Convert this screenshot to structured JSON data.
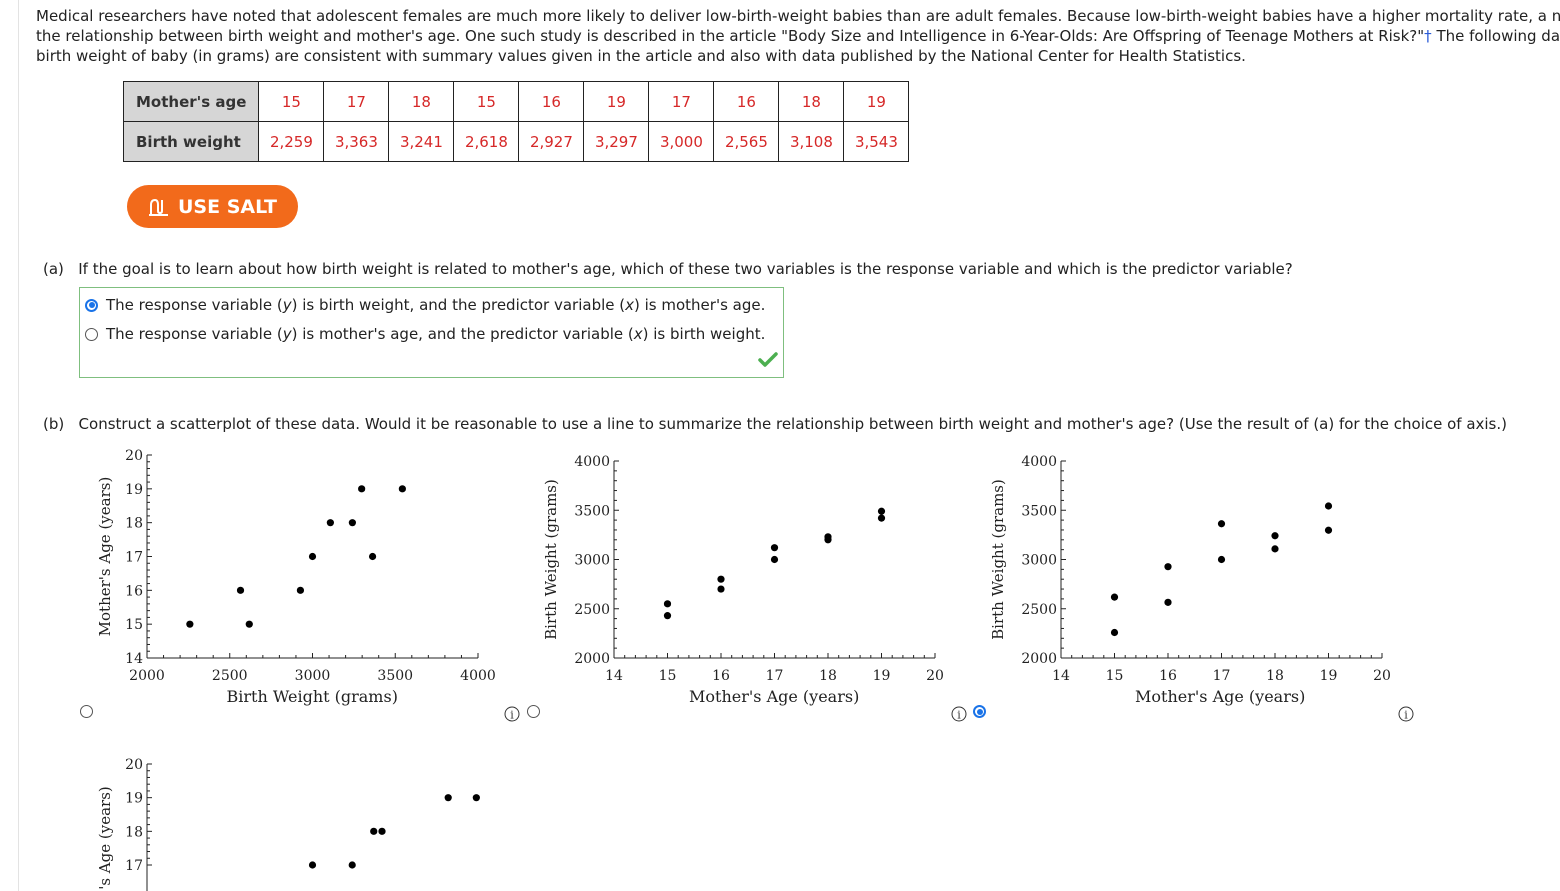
{
  "intro": {
    "line1": "Medical researchers have noted that adolescent females are much more likely to deliver low-birth-weight babies than are adult females. Because low-birth-weight babies have a higher mortality rate, a numb",
    "line2a": "the relationship between birth weight and mother's age. One such study is described in the article \"Body Size and Intelligence in 6-Year-Olds: Are Offspring of Teenage Mothers at Risk?\"",
    "dagger": "†",
    "line2b": " The following data c",
    "line3": "birth weight of baby (in grams) are consistent with summary values given in the article and also with data published by the National Center for Health Statistics."
  },
  "table": {
    "row1_label": "Mother's age",
    "row2_label": "Birth weight",
    "ages": [
      "15",
      "17",
      "18",
      "15",
      "16",
      "19",
      "17",
      "16",
      "18",
      "19"
    ],
    "weights": [
      "2,259",
      "3,363",
      "3,241",
      "2,618",
      "2,927",
      "3,297",
      "3,000",
      "2,565",
      "3,108",
      "3,543"
    ]
  },
  "salt_button": {
    "label": "USE SALT",
    "icon": "salt-icon"
  },
  "part_a": {
    "label": "(a)",
    "question": "If the goal is to learn about how birth weight is related to mother's age, which of these two variables is the response variable and which is the predictor variable?",
    "options": [
      {
        "pre": "The response variable (",
        "v1": "y",
        "mid": ") is birth weight, and the predictor variable (",
        "v2": "x",
        "post": ") is mother's age.",
        "selected": true
      },
      {
        "pre": "The response variable (",
        "v1": "y",
        "mid": ") is mother's age, and the predictor variable (",
        "v2": "x",
        "post": ") is birth weight.",
        "selected": false
      }
    ],
    "result_icon": "check-icon"
  },
  "part_b": {
    "label": "(b)",
    "question": "Construct a scatterplot of these data. Would it be reasonable to use a line to summarize the relationship between birth weight and mother's age? (Use the result of (a) for the choice of axis.)"
  },
  "chart_data": [
    {
      "type": "scatter",
      "selected": false,
      "xlabel": "Birth Weight (grams)",
      "ylabel": "Mother's Age (years)",
      "xlim": [
        2000,
        4000
      ],
      "ylim": [
        14,
        20
      ],
      "xticks": [
        "2000",
        "2500",
        "3000",
        "3500",
        "4000"
      ],
      "yticks": [
        "14",
        "15",
        "16",
        "17",
        "18",
        "19",
        "20"
      ],
      "points": [
        [
          2259,
          15
        ],
        [
          2618,
          15
        ],
        [
          2565,
          16
        ],
        [
          2927,
          16
        ],
        [
          3000,
          17
        ],
        [
          3363,
          17
        ],
        [
          3108,
          18
        ],
        [
          3241,
          18
        ],
        [
          3297,
          19
        ],
        [
          3543,
          19
        ]
      ]
    },
    {
      "type": "scatter",
      "selected": false,
      "xlabel": "Mother's Age (years)",
      "ylabel": "Birth Weight (grams)",
      "xlim": [
        14,
        20
      ],
      "ylim": [
        2000,
        4000
      ],
      "xticks": [
        "14",
        "15",
        "16",
        "17",
        "18",
        "19",
        "20"
      ],
      "yticks": [
        "2000",
        "2500",
        "3000",
        "3500",
        "4000"
      ],
      "points": [
        [
          15,
          2550
        ],
        [
          15,
          2430
        ],
        [
          16,
          2800
        ],
        [
          16,
          2700
        ],
        [
          17,
          3120
        ],
        [
          17,
          3000
        ],
        [
          18,
          3230
        ],
        [
          18,
          3200
        ],
        [
          19,
          3490
        ],
        [
          19,
          3420
        ]
      ]
    },
    {
      "type": "scatter",
      "selected": true,
      "xlabel": "Mother's Age (years)",
      "ylabel": "Birth Weight (grams)",
      "xlim": [
        14,
        20
      ],
      "ylim": [
        2000,
        4000
      ],
      "xticks": [
        "14",
        "15",
        "16",
        "17",
        "18",
        "19",
        "20"
      ],
      "yticks": [
        "2000",
        "2500",
        "3000",
        "3500",
        "4000"
      ],
      "points": [
        [
          15,
          2259
        ],
        [
          15,
          2618
        ],
        [
          16,
          2565
        ],
        [
          16,
          2927
        ],
        [
          17,
          3000
        ],
        [
          17,
          3363
        ],
        [
          18,
          3108
        ],
        [
          18,
          3241
        ],
        [
          19,
          3297
        ],
        [
          19,
          3543
        ]
      ]
    },
    {
      "type": "scatter",
      "selected": false,
      "partial": true,
      "ylabel": "'s Age (years)",
      "ylim": [
        14,
        20
      ],
      "yticks": [
        "17",
        "18",
        "19",
        "20"
      ],
      "xlim": [
        2000,
        4000
      ],
      "points": [
        [
          3000,
          17
        ],
        [
          3240,
          17
        ],
        [
          3370,
          18
        ],
        [
          3420,
          18
        ],
        [
          3820,
          19
        ],
        [
          3990,
          19
        ]
      ]
    }
  ]
}
